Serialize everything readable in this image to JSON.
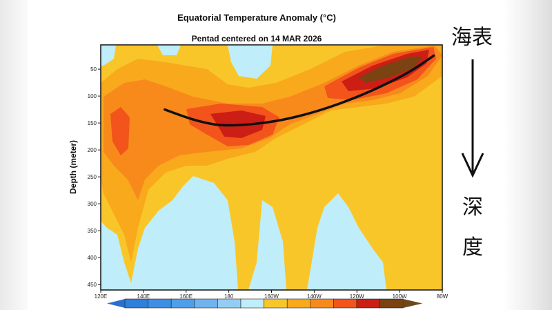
{
  "chart_data": {
    "type": "heatmap",
    "title": "Equatorial Temperature Anomaly (°C)",
    "subtitle": "Pentad centered on 14 MAR 2026",
    "xlabel": "",
    "ylabel": "Depth (meter)",
    "x_ticks": [
      "120E",
      "140E",
      "160E",
      "180",
      "160W",
      "140W",
      "120W",
      "100W",
      "80W"
    ],
    "x_tick_lon_east": [
      120,
      140,
      160,
      180,
      200,
      220,
      240,
      260,
      280
    ],
    "xlim_lon_east": [
      120,
      280
    ],
    "y_ticks": [
      "50",
      "100",
      "150",
      "200",
      "250",
      "300",
      "350",
      "400",
      "450"
    ],
    "y_tick_values": [
      50,
      100,
      150,
      200,
      250,
      300,
      350,
      400,
      450
    ],
    "ylim": [
      5,
      460
    ],
    "y_inverted": true,
    "colorbar": {
      "levels_labeled": false,
      "colors": [
        "#2a6fd0",
        "#2f7fdc",
        "#3d8fe6",
        "#4e9fea",
        "#6fb3ef",
        "#94cdf4",
        "#bfeefa",
        "#f9c62a",
        "#f9a91c",
        "#f88a1c",
        "#f2541b",
        "#cc1e14",
        "#7b4212",
        "#6b4a1a"
      ]
    },
    "annotation_line": {
      "description_points_lonE_depth": [
        [
          150,
          125
        ],
        [
          160,
          140
        ],
        [
          170,
          151
        ],
        [
          178,
          155
        ],
        [
          190,
          153
        ],
        [
          205,
          145
        ],
        [
          220,
          130
        ],
        [
          235,
          110
        ],
        [
          250,
          85
        ],
        [
          265,
          55
        ],
        [
          276,
          25
        ]
      ],
      "color": "#111111"
    }
  },
  "annotation": {
    "top_label": "海表",
    "bottom_char_1": "深",
    "bottom_char_2": "度"
  }
}
